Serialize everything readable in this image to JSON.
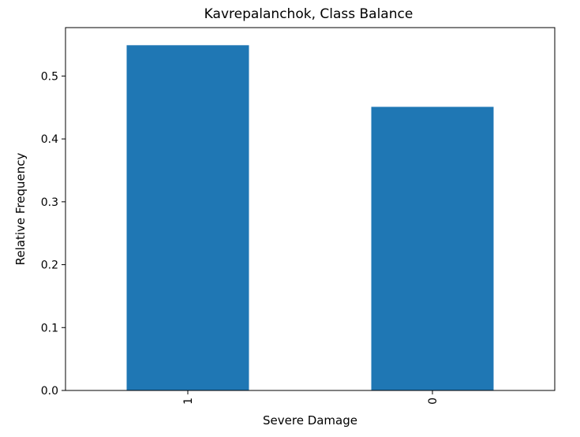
{
  "chart_data": {
    "type": "bar",
    "title": "Kavrepalanchok, Class Balance",
    "xlabel": "Severe Damage",
    "ylabel": "Relative Frequency",
    "categories": [
      "1",
      "0"
    ],
    "values": [
      0.549,
      0.451
    ],
    "ylim": [
      0,
      0.577
    ],
    "yticks": [
      "0.0",
      "0.1",
      "0.2",
      "0.3",
      "0.4",
      "0.5"
    ],
    "ytick_values": [
      0,
      0.1,
      0.2,
      0.3,
      0.4,
      0.5
    ],
    "bar_color": "#1f77b4",
    "xtick_rotation": "vertical",
    "grid": false,
    "legend": "none"
  }
}
